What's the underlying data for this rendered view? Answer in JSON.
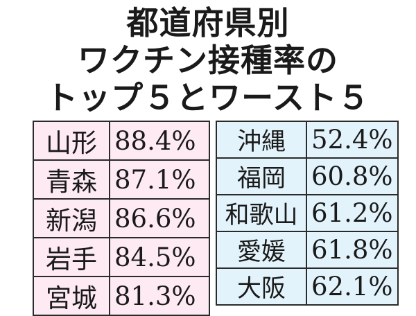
{
  "title": {
    "line1": "都道府県別",
    "line2": "ワクチン接種率の",
    "line3": "トップ５とワースト５"
  },
  "colors": {
    "top_bg": "#fdeaf2",
    "worst_bg": "#e3f3fb",
    "border": "#2a2a2a"
  },
  "top5": [
    {
      "name": "山形",
      "rate": "88.4%"
    },
    {
      "name": "青森",
      "rate": "87.1%"
    },
    {
      "name": "新潟",
      "rate": "86.6%"
    },
    {
      "name": "岩手",
      "rate": "84.5%"
    },
    {
      "name": "宮城",
      "rate": "81.3%"
    }
  ],
  "worst5": [
    {
      "name": "沖縄",
      "rate": "52.4%"
    },
    {
      "name": "福岡",
      "rate": "60.8%"
    },
    {
      "name": "和歌山",
      "rate": "61.2%"
    },
    {
      "name": "愛媛",
      "rate": "61.8%"
    },
    {
      "name": "大阪",
      "rate": "62.1%"
    }
  ]
}
